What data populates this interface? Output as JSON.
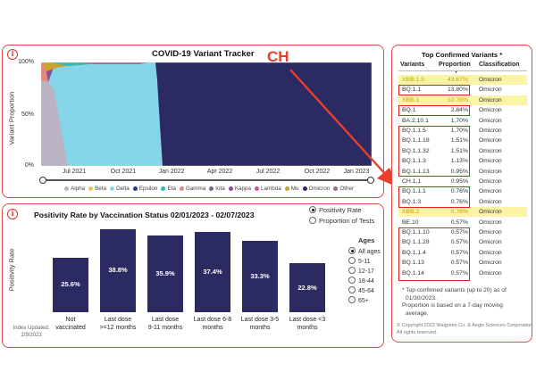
{
  "annotation": {
    "ch_label": "CH"
  },
  "variant_tracker": {
    "title": "COVID-19 Variant Tracker",
    "ylabel": "Variant Proportion",
    "y_ticks": [
      "100%",
      "50%",
      "0%"
    ],
    "x_ticks": [
      "Jul 2021",
      "Oct 2021",
      "Jan 2022",
      "Apr 2022",
      "Jul 2022",
      "Oct 2022",
      "Jan 2023"
    ],
    "legend": [
      {
        "name": "Alpha",
        "color": "#b9b3c4"
      },
      {
        "name": "Beta",
        "color": "#e4c85a"
      },
      {
        "name": "Delta",
        "color": "#86d6ea"
      },
      {
        "name": "Epsilon",
        "color": "#2d3a8c"
      },
      {
        "name": "Eta",
        "color": "#3bb7a4"
      },
      {
        "name": "Gamma",
        "color": "#e58a74"
      },
      {
        "name": "Iota",
        "color": "#6a6d8c"
      },
      {
        "name": "Kappa",
        "color": "#8a4f9a"
      },
      {
        "name": "Lambda",
        "color": "#d2509a"
      },
      {
        "name": "Mu",
        "color": "#c9a32b"
      },
      {
        "name": "Omicron",
        "color": "#2b2a63"
      },
      {
        "name": "Other",
        "color": "#9c6a8a"
      }
    ]
  },
  "positivity": {
    "title": "Positivity Rate by Vaccination Status 02/01/2023 - 02/07/2023",
    "ylabel": "Positivity Rate",
    "options": [
      {
        "label": "Positivity Rate",
        "selected": true
      },
      {
        "label": "Proportion of Tests",
        "selected": false
      }
    ],
    "ages_title": "Ages",
    "ages": [
      {
        "label": "All ages",
        "selected": true
      },
      {
        "label": "5-11",
        "selected": false
      },
      {
        "label": "12-17",
        "selected": false
      },
      {
        "label": "18-44",
        "selected": false
      },
      {
        "label": "45-64",
        "selected": false
      },
      {
        "label": "65+",
        "selected": false
      }
    ],
    "index_updated": "Index Updated:",
    "index_date": "2/9/2023"
  },
  "chart_data": {
    "type": "bar",
    "title": "Positivity Rate by Vaccination Status 02/01/2023 - 02/07/2023",
    "ylabel": "Positivity Rate",
    "categories": [
      "Not vaccinated",
      "Last dose >=12 months",
      "Last dose 9-11 months",
      "Last dose 6-8 months",
      "Last dose 3-5 months",
      "Last dose <3 months"
    ],
    "category_lines": [
      [
        "Not",
        "vaccinated"
      ],
      [
        "Last dose",
        ">=12 months"
      ],
      [
        "Last dose",
        "9-11 months"
      ],
      [
        "Last dose 6-8",
        "months"
      ],
      [
        "Last dose 3-5",
        "months"
      ],
      [
        "Last dose <3",
        "months"
      ]
    ],
    "values": [
      25.6,
      38.8,
      35.9,
      37.4,
      33.3,
      22.8
    ],
    "labels": [
      "25.6%",
      "38.8%",
      "35.9%",
      "37.4%",
      "33.3%",
      "22.8%"
    ],
    "ylim": [
      0,
      40
    ]
  },
  "variants_table": {
    "title": "Top Confirmed Variants *",
    "headers": [
      "Variants",
      "Proportion",
      "Classification"
    ],
    "rows": [
      {
        "variant": "XBB.1.5",
        "proportion": "43.67%",
        "classification": "Omicron",
        "highlight": true
      },
      {
        "variant": "BQ.1.1",
        "proportion": "13.80%",
        "classification": "Omicron",
        "highlight": false
      },
      {
        "variant": "XBB.1",
        "proportion": "10.78%",
        "classification": "Omicron",
        "highlight": true
      },
      {
        "variant": "BQ.1",
        "proportion": "2.84%",
        "classification": "Omicron",
        "highlight": false
      },
      {
        "variant": "BA.2.10.1",
        "proportion": "1.70%",
        "classification": "Omicron",
        "highlight": false
      },
      {
        "variant": "BQ.1.1.5",
        "proportion": "1.70%",
        "classification": "Omicron",
        "highlight": false
      },
      {
        "variant": "BQ.1.1.18",
        "proportion": "1.51%",
        "classification": "Omicron",
        "highlight": false
      },
      {
        "variant": "BQ.1.1.32",
        "proportion": "1.51%",
        "classification": "Omicron",
        "highlight": false
      },
      {
        "variant": "BQ.1.1.3",
        "proportion": "1.13%",
        "classification": "Omicron",
        "highlight": false
      },
      {
        "variant": "BQ.1.1.13",
        "proportion": "0.95%",
        "classification": "Omicron",
        "highlight": false
      },
      {
        "variant": "CH.1.1",
        "proportion": "0.95%",
        "classification": "Omicron",
        "highlight": false
      },
      {
        "variant": "BQ.1.1.1",
        "proportion": "0.76%",
        "classification": "Omicron",
        "highlight": false
      },
      {
        "variant": "BQ.1.3",
        "proportion": "0.76%",
        "classification": "Omicron",
        "highlight": false
      },
      {
        "variant": "XBB.2",
        "proportion": "0.76%",
        "classification": "Omicron",
        "highlight": true
      },
      {
        "variant": "BE.10",
        "proportion": "0.57%",
        "classification": "Omicron",
        "highlight": false
      },
      {
        "variant": "BQ.1.1.10",
        "proportion": "0.57%",
        "classification": "Omicron",
        "highlight": false
      },
      {
        "variant": "BQ.1.1.28",
        "proportion": "0.57%",
        "classification": "Omicron",
        "highlight": false
      },
      {
        "variant": "BQ.1.1.4",
        "proportion": "0.57%",
        "classification": "Omicron",
        "highlight": false
      },
      {
        "variant": "BQ.1.13",
        "proportion": "0.57%",
        "classification": "Omicron",
        "highlight": false
      },
      {
        "variant": "BQ.1.14",
        "proportion": "0.57%",
        "classification": "Omicron",
        "highlight": false
      }
    ],
    "notes": [
      "* Top confirmed variants (up to 20) as of",
      "01/30/2023.",
      "Proportion is based on a 7-day moving",
      "average."
    ],
    "copyright": [
      "© Copyright 2022 Walgreen Co. & Aegis Sciences Corporation.",
      "All rights reserved."
    ]
  }
}
